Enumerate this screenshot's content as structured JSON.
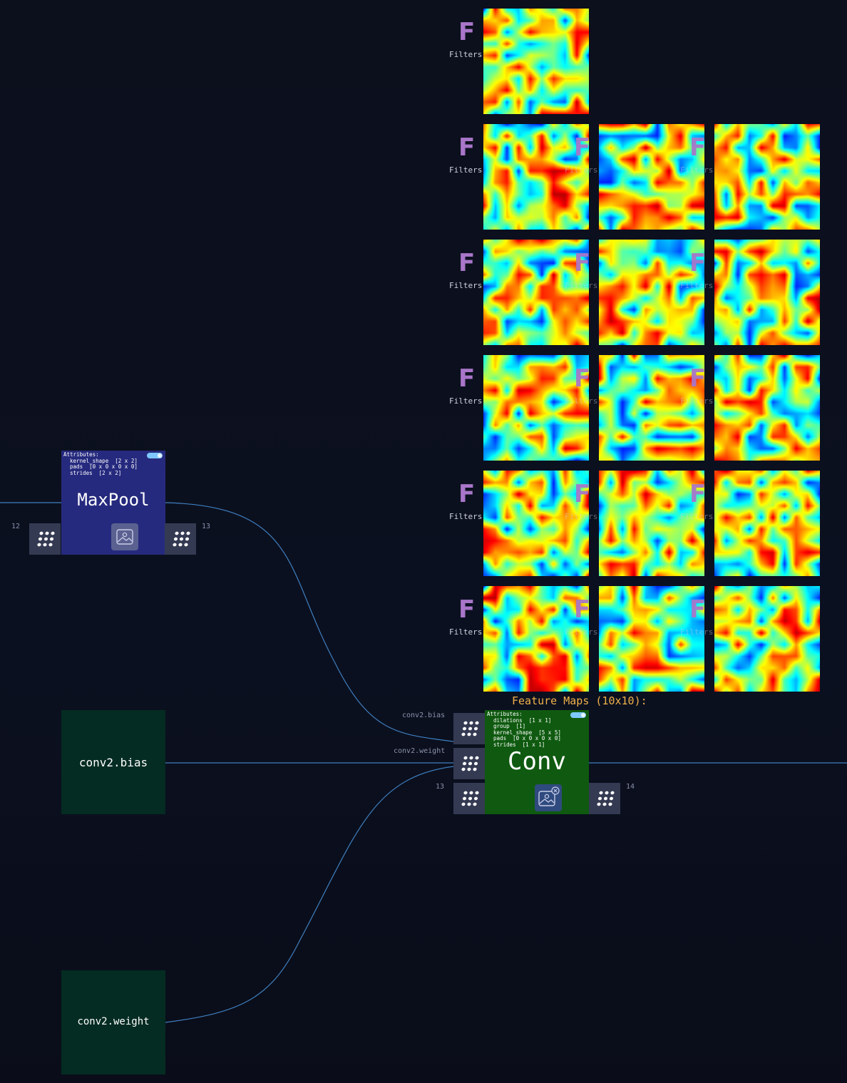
{
  "nodes": {
    "maxpool": {
      "title": "MaxPool",
      "attributes": "Attributes:\n  kernel_shape  [2 x 2]\n  pads  [0 x 0 x 0 x 0]\n  strides  [2 x 2]",
      "input_port": "12",
      "output_port": "13",
      "color": "#262a7e"
    },
    "conv": {
      "title": "Conv",
      "attributes": "Attributes:\n  dilations  [1 x 1]\n  group  [1]\n  kernel_shape  [5 x 5]\n  pads  [0 x 0 x 0 x 0]\n  strides  [1 x 1]",
      "input_port_labels": [
        "conv2.bias",
        "conv2.weight"
      ],
      "input_port": "13",
      "output_port": "14",
      "color": "#0f5a10"
    },
    "conv2_bias": {
      "title": "conv2.bias",
      "color": "#042c22"
    },
    "conv2_weight": {
      "title": "conv2.weight",
      "color": "#042c22"
    }
  },
  "feature_maps": {
    "title": "Feature Maps (10x10):",
    "filter_glyph": "F",
    "filter_label": "Filters",
    "rows": [
      1,
      3,
      3,
      3,
      3,
      3
    ]
  },
  "colors": {
    "wire": "#3f7fbf",
    "port_bg": "#343a52",
    "feature_title": "#f0b24a",
    "filter_badge": "#a876c9"
  },
  "icons": [
    "dot-grid-icon",
    "image-icon",
    "image-close-icon",
    "filter-f-icon"
  ]
}
